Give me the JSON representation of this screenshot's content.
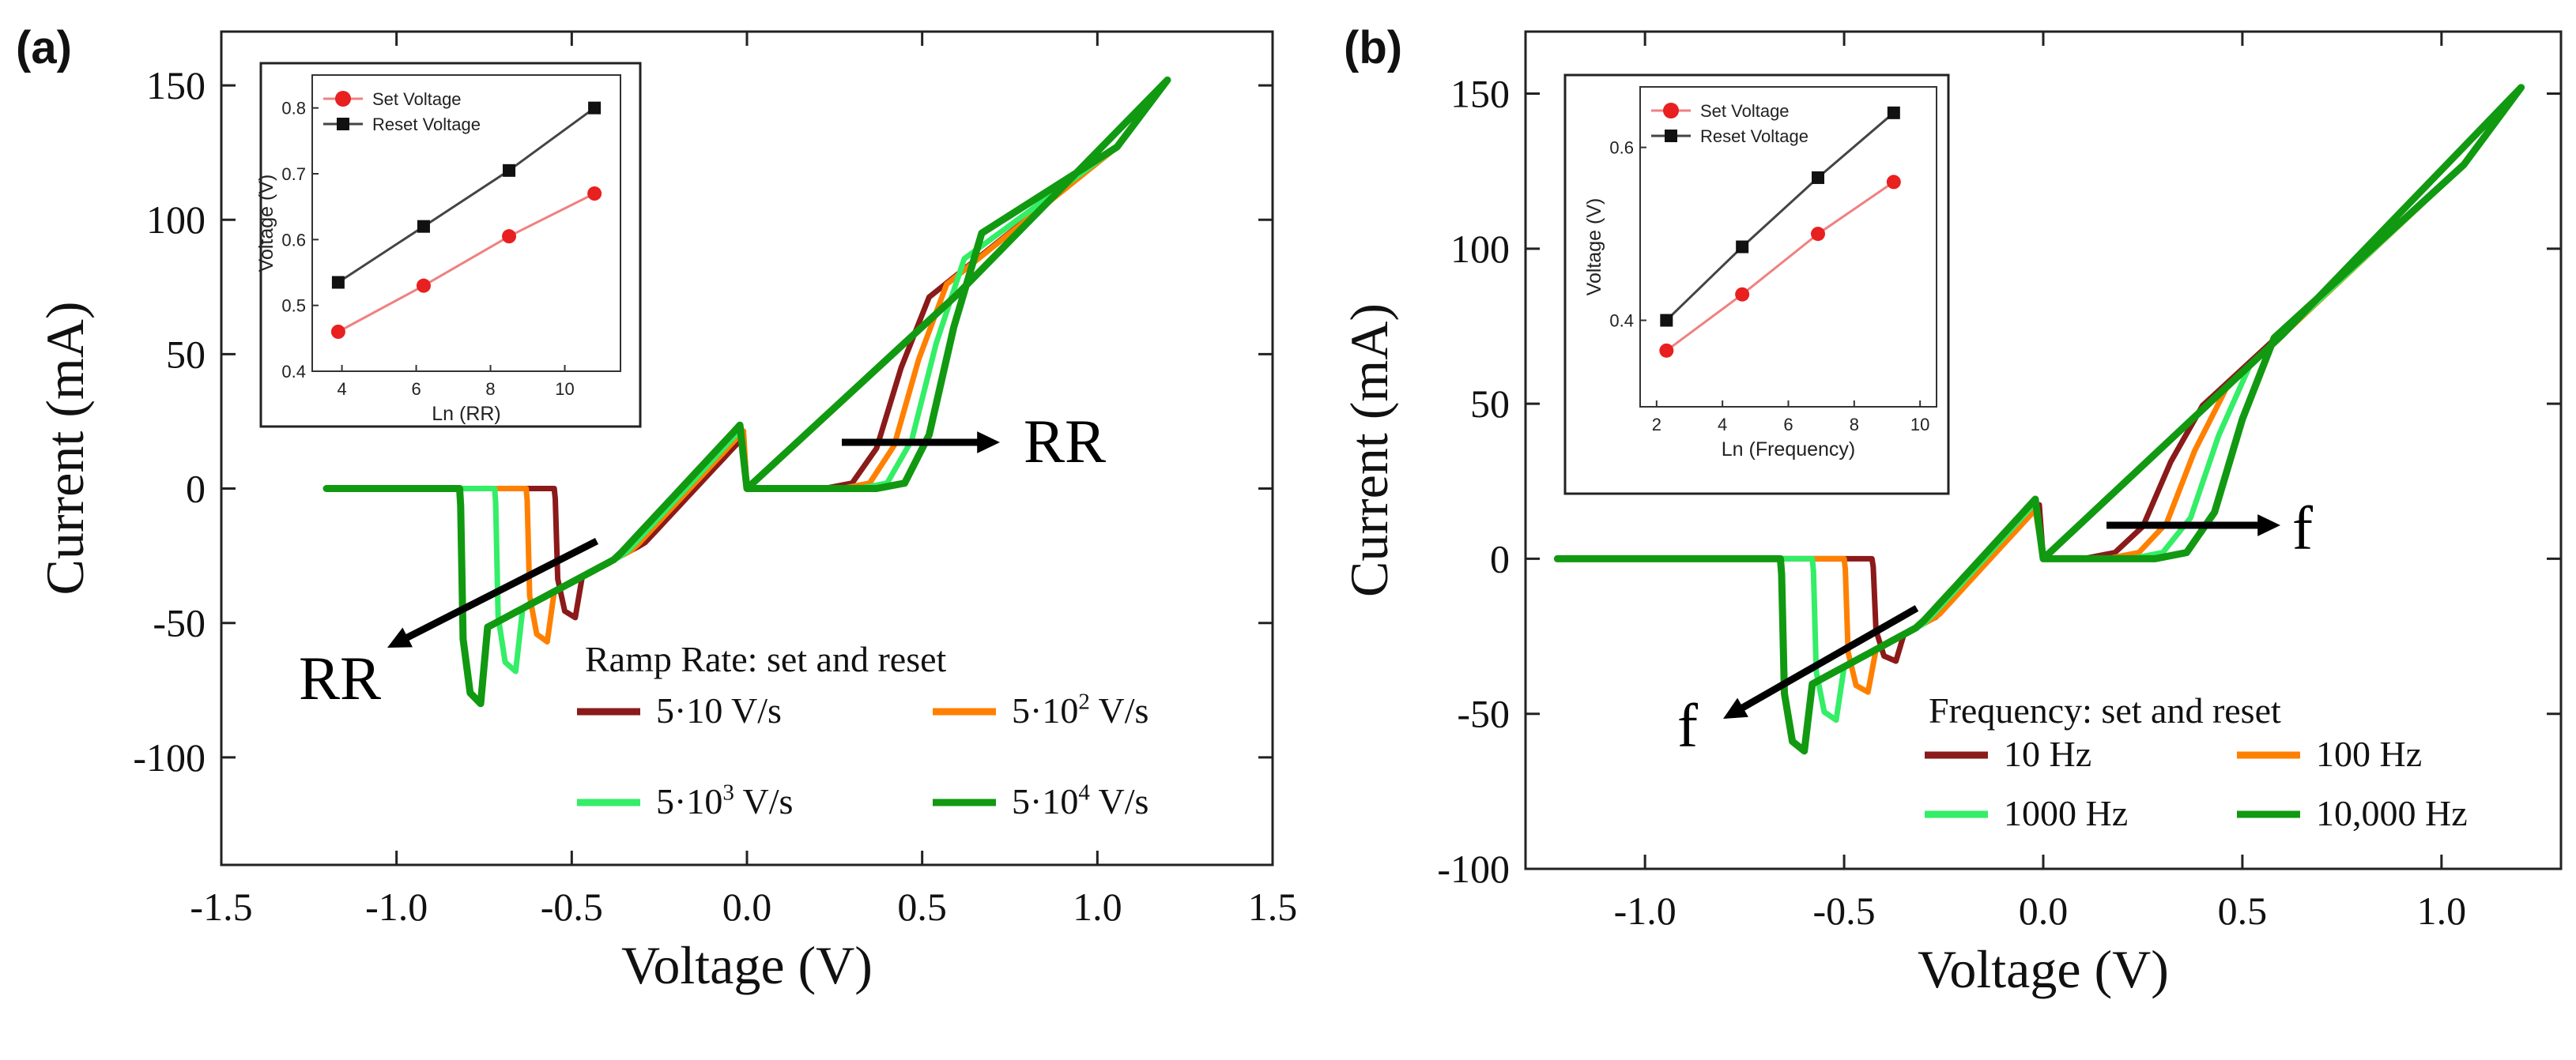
{
  "chart_data": [
    {
      "panel_label": "(a)",
      "type": "line",
      "xlabel": "Voltage (V)",
      "ylabel": "Current (mA)",
      "xlim": [
        -1.5,
        1.5
      ],
      "ylim": [
        -140,
        170
      ],
      "xticks": [
        "-1.5",
        "-1.0",
        "-0.5",
        "0.0",
        "0.5",
        "1.0",
        "1.5"
      ],
      "yticks": [
        "-100",
        "-50",
        "0",
        "50",
        "100",
        "150"
      ],
      "legend_title": "Ramp Rate: set and reset",
      "arrow_labels": [
        "RR",
        "RR"
      ],
      "series": [
        {
          "name": "5·10 V/s",
          "color": "#8b1a1a",
          "set_v": 0.42,
          "set_i": 75,
          "reset_v": -0.55,
          "reset_i": -48
        },
        {
          "name": "5·10² V/s",
          "color": "#ff8000",
          "set_v": 0.47,
          "set_i": 80,
          "reset_v": -0.63,
          "reset_i": -57
        },
        {
          "name": "5·10³ V/s",
          "color": "#33ee66",
          "set_v": 0.52,
          "set_i": 90,
          "reset_v": -0.72,
          "reset_i": -68
        },
        {
          "name": "5·10⁴ V/s",
          "color": "#119911",
          "set_v": 0.57,
          "set_i": 100,
          "reset_v": -0.82,
          "reset_i": -80
        }
      ],
      "envelope": {
        "v_min": -1.2,
        "v_max": 1.2,
        "i_max": 152
      },
      "inset": {
        "type": "line",
        "xlabel": "Ln (RR)",
        "ylabel": "Voltage (V)",
        "xlim": [
          3.2,
          11.5
        ],
        "ylim": [
          0.4,
          0.85
        ],
        "xticks": [
          "4",
          "6",
          "8",
          "10"
        ],
        "yticks": [
          "0.4",
          "0.5",
          "0.6",
          "0.7",
          "0.8"
        ],
        "series": [
          {
            "name": "Set Voltage",
            "color": "#e82020",
            "marker": "circle",
            "x": [
              3.9,
              6.2,
              8.5,
              10.8
            ],
            "y": [
              0.46,
              0.53,
              0.605,
              0.67
            ]
          },
          {
            "name": "Reset Voltage",
            "color": "#111111",
            "marker": "square",
            "x": [
              3.9,
              6.2,
              8.5,
              10.8
            ],
            "y": [
              0.535,
              0.62,
              0.705,
              0.8
            ]
          }
        ]
      }
    },
    {
      "panel_label": "(b)",
      "type": "line",
      "xlabel": "Voltage (V)",
      "ylabel": "Current (mA)",
      "xlim": [
        -1.3,
        1.3
      ],
      "ylim": [
        -100,
        170
      ],
      "xticks": [
        "-1.0",
        "-0.5",
        "0.0",
        "0.5",
        "1.0"
      ],
      "yticks": [
        "-100",
        "-50",
        "0",
        "50",
        "100",
        "150"
      ],
      "legend_title": "Frequency: set and reset",
      "arrow_labels": [
        "f",
        "f"
      ],
      "series": [
        {
          "name": "10 Hz",
          "color": "#8b1a1a",
          "set_v": 0.3,
          "set_i": 52,
          "reset_v": -0.43,
          "reset_i": -33
        },
        {
          "name": "100 Hz",
          "color": "#ff8000",
          "set_v": 0.36,
          "set_i": 58,
          "reset_v": -0.5,
          "reset_i": -43
        },
        {
          "name": "1000 Hz",
          "color": "#33ee66",
          "set_v": 0.42,
          "set_i": 66,
          "reset_v": -0.58,
          "reset_i": -52
        },
        {
          "name": "10,000 Hz",
          "color": "#119911",
          "set_v": 0.48,
          "set_i": 75,
          "reset_v": -0.66,
          "reset_i": -62
        }
      ],
      "envelope": {
        "v_min": -1.22,
        "v_max": 1.2,
        "i_max": 152
      },
      "inset": {
        "type": "line",
        "xlabel": "Ln (Frequency)",
        "ylabel": "Voltage (V)",
        "xlim": [
          1.5,
          10.5
        ],
        "ylim": [
          0.3,
          0.67
        ],
        "xticks": [
          "2",
          "4",
          "6",
          "8",
          "10"
        ],
        "yticks": [
          "0.4",
          "0.6"
        ],
        "series": [
          {
            "name": "Set Voltage",
            "color": "#e82020",
            "marker": "circle",
            "x": [
              2.3,
              4.6,
              6.9,
              9.2
            ],
            "y": [
              0.365,
              0.43,
              0.5,
              0.56
            ]
          },
          {
            "name": "Reset Voltage",
            "color": "#111111",
            "marker": "square",
            "x": [
              2.3,
              4.6,
              6.9,
              9.2
            ],
            "y": [
              0.4,
              0.485,
              0.565,
              0.64
            ]
          }
        ]
      }
    }
  ]
}
